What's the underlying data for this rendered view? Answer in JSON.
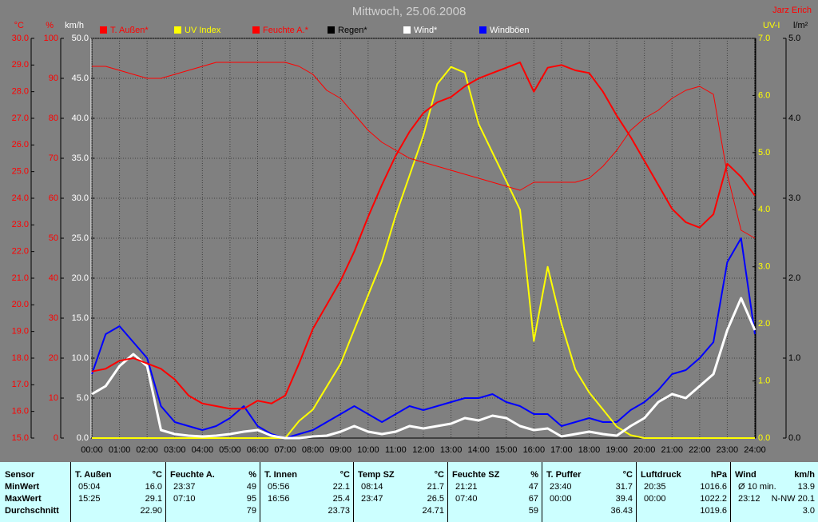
{
  "chart_data": {
    "type": "line",
    "title": "Mittwoch, 25.06.2008",
    "author": "Jarz Erich",
    "x": [
      0,
      0.5,
      1,
      1.5,
      2,
      2.5,
      3,
      3.5,
      4,
      4.5,
      5,
      5.5,
      6,
      6.5,
      7,
      7.5,
      8,
      8.5,
      9,
      9.5,
      10,
      10.5,
      11,
      11.5,
      12,
      12.5,
      13,
      13.5,
      14,
      14.5,
      15,
      15.5,
      16,
      16.5,
      17,
      17.5,
      18,
      18.5,
      19,
      19.5,
      20,
      20.5,
      21,
      21.5,
      22,
      22.5,
      23,
      23.5,
      24
    ],
    "xlim": [
      0,
      24
    ],
    "xticks": [
      {
        "value": 0,
        "label": "00:00"
      },
      {
        "value": 1,
        "label": "01:00"
      },
      {
        "value": 2,
        "label": "02:00"
      },
      {
        "value": 3,
        "label": "03:00"
      },
      {
        "value": 4,
        "label": "04:00"
      },
      {
        "value": 5,
        "label": "05:00"
      },
      {
        "value": 6,
        "label": "06:00"
      },
      {
        "value": 7,
        "label": "07:00"
      },
      {
        "value": 8,
        "label": "08:00"
      },
      {
        "value": 9,
        "label": "09:00"
      },
      {
        "value": 10,
        "label": "10:00"
      },
      {
        "value": 11,
        "label": "11:00"
      },
      {
        "value": 12,
        "label": "12:00"
      },
      {
        "value": 13,
        "label": "13:00"
      },
      {
        "value": 14,
        "label": "14:00"
      },
      {
        "value": 15,
        "label": "15:00"
      },
      {
        "value": 16,
        "label": "16:00"
      },
      {
        "value": 17,
        "label": "17:00"
      },
      {
        "value": 18,
        "label": "18:00"
      },
      {
        "value": 19,
        "label": "19:00"
      },
      {
        "value": 20,
        "label": "20:00"
      },
      {
        "value": 21,
        "label": "21:00"
      },
      {
        "value": 22,
        "label": "22:00"
      },
      {
        "value": 23,
        "label": "23:00"
      },
      {
        "value": 24,
        "label": "24:00"
      }
    ],
    "grid": true,
    "axes": [
      {
        "unit": "°C",
        "color": "#ff0000",
        "lim": [
          15,
          30
        ],
        "ticks": [
          {
            "value": 15,
            "label": "15.0"
          },
          {
            "value": 16,
            "label": "16.0"
          },
          {
            "value": 17,
            "label": "17.0"
          },
          {
            "value": 18,
            "label": "18.0"
          },
          {
            "value": 19,
            "label": "19.0"
          },
          {
            "value": 20,
            "label": "20.0"
          },
          {
            "value": 21,
            "label": "21.0"
          },
          {
            "value": 22,
            "label": "22.0"
          },
          {
            "value": 23,
            "label": "23.0"
          },
          {
            "value": 24,
            "label": "24.0"
          },
          {
            "value": 25,
            "label": "25.0"
          },
          {
            "value": 26,
            "label": "26.0"
          },
          {
            "value": 27,
            "label": "27.0"
          },
          {
            "value": 28,
            "label": "28.0"
          },
          {
            "value": 29,
            "label": "29.0"
          },
          {
            "value": 30,
            "label": "30.0"
          }
        ]
      },
      {
        "unit": "%",
        "color": "#ff0000",
        "lim": [
          0,
          100
        ],
        "ticks": [
          0,
          10,
          20,
          30,
          40,
          50,
          60,
          70,
          80,
          90,
          100
        ]
      },
      {
        "unit": "km/h",
        "color": "#ffffff",
        "lim": [
          0,
          50
        ],
        "ticks": [
          {
            "value": 0,
            "label": "0.0"
          },
          {
            "value": 5,
            "label": "5.0"
          },
          {
            "value": 10,
            "label": "10.0"
          },
          {
            "value": 15,
            "label": "15.0"
          },
          {
            "value": 20,
            "label": "20.0"
          },
          {
            "value": 25,
            "label": "25.0"
          },
          {
            "value": 30,
            "label": "30.0"
          },
          {
            "value": 35,
            "label": "35.0"
          },
          {
            "value": 40,
            "label": "40.0"
          },
          {
            "value": 45,
            "label": "45.0"
          },
          {
            "value": 50,
            "label": "50.0"
          }
        ]
      },
      {
        "unit": "UV-I",
        "color": "#ffff00",
        "lim": [
          0,
          7
        ],
        "ticks": [
          {
            "value": 0,
            "label": "0.0"
          },
          {
            "value": 1,
            "label": "1.0"
          },
          {
            "value": 2,
            "label": "2.0"
          },
          {
            "value": 3,
            "label": "3.0"
          },
          {
            "value": 4,
            "label": "4.0"
          },
          {
            "value": 5,
            "label": "5.0"
          },
          {
            "value": 6,
            "label": "6.0"
          },
          {
            "value": 7,
            "label": "7.0"
          }
        ]
      },
      {
        "unit": "l/m²",
        "color": "#000000",
        "lim": [
          0,
          5
        ],
        "ticks": [
          {
            "value": 0,
            "label": "0.0"
          },
          {
            "value": 1,
            "label": "1.0"
          },
          {
            "value": 2,
            "label": "2.0"
          },
          {
            "value": 3,
            "label": "3.0"
          },
          {
            "value": 4,
            "label": "4.0"
          },
          {
            "value": 5,
            "label": "5.0"
          }
        ]
      }
    ],
    "series": [
      {
        "name": "T. Außen*",
        "color": "#ff0000",
        "axis": 0,
        "width": 2,
        "values": [
          17.5,
          17.6,
          17.9,
          18.0,
          17.8,
          17.6,
          17.2,
          16.6,
          16.3,
          16.2,
          16.1,
          16.1,
          16.4,
          16.3,
          16.6,
          17.8,
          19.1,
          20.0,
          20.9,
          22.0,
          23.3,
          24.5,
          25.6,
          26.5,
          27.2,
          27.6,
          27.8,
          28.2,
          28.5,
          28.7,
          28.9,
          29.1,
          28.0,
          28.9,
          29.0,
          28.8,
          28.7,
          28.0,
          27.1,
          26.3,
          25.4,
          24.5,
          23.6,
          23.1,
          22.9,
          23.4,
          25.3,
          24.8,
          24.1
        ]
      },
      {
        "name": "UV Index",
        "color": "#ffff00",
        "axis": 3,
        "width": 2,
        "values": [
          0,
          0,
          0,
          0,
          0,
          0,
          0,
          0,
          0,
          0,
          0,
          0,
          0,
          0,
          0,
          0.3,
          0.5,
          0.9,
          1.3,
          1.9,
          2.5,
          3.1,
          3.9,
          4.6,
          5.3,
          6.2,
          6.5,
          6.4,
          5.5,
          5.0,
          4.5,
          4.0,
          1.7,
          3.0,
          2.0,
          1.2,
          0.8,
          0.5,
          0.2,
          0.05,
          0,
          0,
          0,
          0,
          0,
          0,
          0,
          0,
          0
        ]
      },
      {
        "name": "Feuchte A.*",
        "color": "#ff0000",
        "axis": 1,
        "width": 1,
        "values": [
          93,
          93,
          92,
          91,
          90,
          90,
          91,
          92,
          93,
          94,
          94,
          94,
          94,
          94,
          94,
          93,
          91,
          87,
          85,
          81,
          77,
          74,
          72,
          70,
          69,
          68,
          67,
          66,
          65,
          64,
          63,
          62,
          64,
          64,
          64,
          64,
          65,
          68,
          72,
          77,
          80,
          82,
          85,
          87,
          88,
          86,
          66,
          52,
          50
        ]
      },
      {
        "name": "Regen*",
        "color": "#000000",
        "axis": 4,
        "width": 1,
        "values": [
          0,
          0,
          0,
          0,
          0,
          0,
          0,
          0,
          0,
          0,
          0,
          0,
          0,
          0,
          0,
          0,
          0,
          0,
          0,
          0,
          0,
          0,
          0,
          0,
          0,
          0,
          0,
          0,
          0,
          0,
          0,
          0,
          0,
          0,
          0,
          0,
          0,
          0,
          0,
          0,
          0,
          0,
          0,
          0,
          0,
          0,
          0,
          0,
          0
        ]
      },
      {
        "name": "Wind*",
        "color": "#ffffff",
        "axis": 2,
        "width": 3,
        "values": [
          5.5,
          6.5,
          9,
          10.5,
          9,
          1,
          0.5,
          0.3,
          0.2,
          0.3,
          0.5,
          0.8,
          1,
          0.3,
          0,
          0,
          0.2,
          0.3,
          0.8,
          1.5,
          0.8,
          0.5,
          0.8,
          1.5,
          1.2,
          1.5,
          1.8,
          2.5,
          2.2,
          2.8,
          2.5,
          1.5,
          1.0,
          1.2,
          0.2,
          0.5,
          0.8,
          0.5,
          0.3,
          1.5,
          2.5,
          4.5,
          5.5,
          5.0,
          6.5,
          8.0,
          13.5,
          17.5,
          13.5
        ]
      },
      {
        "name": "Windböen",
        "color": "#0000ff",
        "axis": 2,
        "width": 2,
        "values": [
          8,
          13,
          14,
          12,
          10,
          4,
          2,
          1.5,
          1.0,
          1.5,
          2.5,
          4,
          1.5,
          0.5,
          0,
          0.5,
          1,
          2,
          3,
          4,
          3,
          2,
          3,
          4,
          3.5,
          4,
          4.5,
          5,
          5,
          5.5,
          4.5,
          4,
          3,
          3,
          1.5,
          2,
          2.5,
          2,
          2,
          3.5,
          4.5,
          6,
          8,
          8.5,
          10,
          12,
          22,
          25,
          13
        ]
      }
    ]
  },
  "table": {
    "row_labels": [
      "Sensor",
      "MinWert",
      "MaxWert",
      "Durchschnitt"
    ],
    "columns": [
      {
        "name": "T. Außen",
        "unit": "°C",
        "min_time": "05:04",
        "min": "16.0",
        "max_time": "15:25",
        "max": "29.1",
        "avg": "22.90"
      },
      {
        "name": "Feuchte A.",
        "unit": "%",
        "min_time": "23:37",
        "min": "49",
        "max_time": "07:10",
        "max": "95",
        "avg": "79"
      },
      {
        "name": "T. Innen",
        "unit": "°C",
        "min_time": "05:56",
        "min": "22.1",
        "max_time": "16:56",
        "max": "25.4",
        "avg": "23.73"
      },
      {
        "name": "Temp SZ",
        "unit": "°C",
        "min_time": "08:14",
        "min": "21.7",
        "max_time": "23:47",
        "max": "26.5",
        "avg": "24.71"
      },
      {
        "name": "Feuchte SZ",
        "unit": "%",
        "min_time": "21:21",
        "min": "47",
        "max_time": "07:40",
        "max": "67",
        "avg": "59"
      },
      {
        "name": "T. Puffer",
        "unit": "°C",
        "min_time": "23:40",
        "min": "31.7",
        "max_time": "00:00",
        "max": "39.4",
        "avg": "36.43"
      },
      {
        "name": "Luftdruck",
        "unit": "hPa",
        "min_time": "20:35",
        "min": "1016.6",
        "max_time": "00:00",
        "max": "1022.2",
        "avg": "1019.6"
      },
      {
        "name": "Wind",
        "unit": "km/h",
        "min_time": "Ø 10 min.",
        "min": "13.9",
        "max_time": "23:12",
        "max": "N-NW 20.1",
        "avg": "3.0"
      }
    ]
  }
}
